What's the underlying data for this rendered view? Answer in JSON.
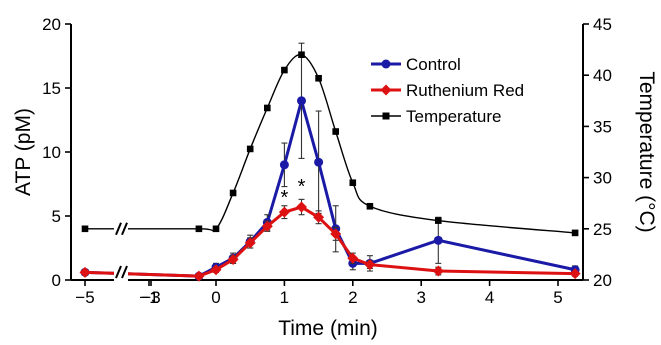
{
  "chart_data": {
    "type": "line",
    "xlabel": "Time (min)",
    "ylabel_left": "ATP (pM)",
    "ylabel_right": "Temperature (°C)",
    "xlim": [
      -5.1,
      5.4
    ],
    "x_ticks": [
      -5,
      -3,
      -1,
      0,
      1,
      2,
      3,
      4,
      5
    ],
    "x_tick_labels": [
      "−5",
      "−3",
      "−1",
      "0",
      "1",
      "2",
      "3",
      "4",
      "5"
    ],
    "ylim_left": [
      0,
      20
    ],
    "y_ticks_left": [
      0,
      5,
      10,
      15,
      20
    ],
    "ylim_right": [
      20,
      45
    ],
    "y_ticks_right": [
      20,
      25,
      30,
      35,
      40,
      45
    ],
    "axis_break": "//",
    "annotations": [
      "*",
      "*"
    ],
    "legend_position": "top-right",
    "series": [
      {
        "name": "Control",
        "axis": "left",
        "color": "#1a1aa6",
        "marker": "circle",
        "x": [
          -5,
          -0.25,
          0,
          0.25,
          0.5,
          0.75,
          1,
          1.25,
          1.5,
          1.75,
          2,
          2.25,
          3.25,
          5.25
        ],
        "y": [
          0.6,
          0.3,
          1.0,
          1.7,
          3.0,
          4.5,
          9.0,
          14.0,
          9.2,
          4.0,
          1.3,
          1.3,
          3.1,
          0.8
        ],
        "err": [
          0.2,
          0.2,
          0.3,
          0.4,
          0.5,
          0.6,
          1.7,
          4.5,
          4.0,
          1.8,
          0.5,
          0.6,
          1.8,
          0.3
        ]
      },
      {
        "name": "Ruthenium Red",
        "axis": "left",
        "color": "#dd1111",
        "marker": "diamond",
        "x": [
          -5,
          -0.25,
          0,
          0.25,
          0.5,
          0.75,
          1,
          1.25,
          1.5,
          1.75,
          2,
          2.25,
          3.25,
          5.25
        ],
        "y": [
          0.6,
          0.3,
          0.8,
          1.6,
          2.9,
          4.2,
          5.3,
          5.7,
          4.9,
          3.6,
          1.7,
          1.2,
          0.7,
          0.5
        ],
        "err": [
          0.2,
          0.2,
          0.2,
          0.3,
          0.4,
          0.4,
          0.5,
          0.6,
          0.5,
          0.5,
          0.4,
          0.3,
          0.3,
          0.2
        ]
      },
      {
        "name": "Temperature",
        "axis": "right",
        "color": "#000000",
        "marker": "square",
        "x": [
          -5,
          -0.25,
          0,
          0.25,
          0.5,
          0.75,
          1,
          1.25,
          1.5,
          1.75,
          2,
          2.25,
          3.25,
          5.25
        ],
        "y": [
          25.0,
          25.0,
          25.0,
          28.5,
          32.8,
          36.8,
          40.5,
          42.0,
          39.7,
          34.5,
          29.5,
          27.2,
          25.8,
          24.6
        ]
      }
    ],
    "annotation_points": [
      {
        "x": 1,
        "y": 5.3
      },
      {
        "x": 1.25,
        "y": 5.7
      }
    ]
  }
}
